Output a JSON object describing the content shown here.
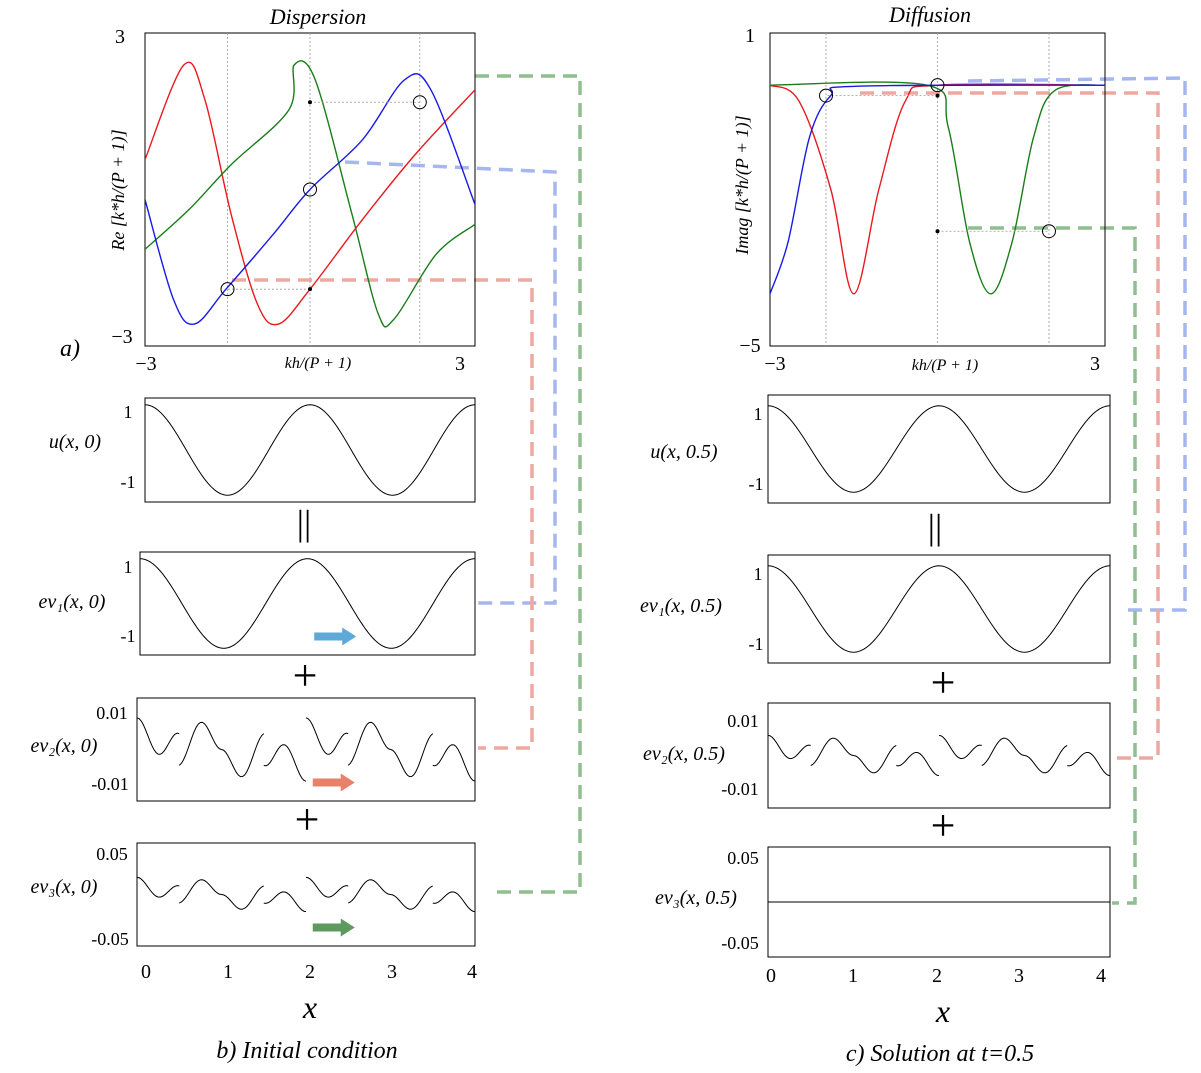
{
  "chart_data": [
    {
      "id": "dispersion",
      "type": "line",
      "panel_label": "a)",
      "title": "Dispersion",
      "xlabel": "kh/(P + 1)",
      "ylabel": "Re [k*h/(P + 1)]",
      "xlim": [
        -3.14,
        3.14
      ],
      "ylim": [
        -3.14,
        3.14
      ],
      "x_ticks": [
        "−3",
        "3"
      ],
      "y_ticks": [
        "3",
        "−3"
      ],
      "grid_x": [
        -1.57,
        0,
        2.09
      ],
      "colors": {
        "red": "#e8191f",
        "green": "#1a7d1a",
        "blue": "#1a1ae6"
      },
      "series": [
        {
          "color": "red",
          "points": [
            [
              -3.14,
              0.6
            ],
            [
              -2.4,
              2.5
            ],
            [
              -2.0,
              1.8
            ],
            [
              -1.5,
              -0.5
            ],
            [
              -1.0,
              -2.3
            ],
            [
              -0.6,
              -2.7
            ],
            [
              0.0,
              -2.0
            ],
            [
              1.0,
              -0.6
            ],
            [
              2.0,
              0.7
            ],
            [
              3.14,
              2.0
            ]
          ]
        },
        {
          "color": "green",
          "points": [
            [
              -3.14,
              -1.2
            ],
            [
              -2.3,
              -0.4
            ],
            [
              -1.5,
              0.5
            ],
            [
              -0.4,
              1.6
            ],
            [
              -0.3,
              2.5
            ],
            [
              0.1,
              2.2
            ],
            [
              0.8,
              -0.5
            ],
            [
              1.3,
              -2.5
            ],
            [
              1.6,
              -2.6
            ],
            [
              2.4,
              -1.3
            ],
            [
              3.14,
              -0.7
            ]
          ]
        },
        {
          "color": "blue",
          "points": [
            [
              -3.14,
              -0.2
            ],
            [
              -2.6,
              -2.2
            ],
            [
              -2.2,
              -2.7
            ],
            [
              -1.6,
              -2.0
            ],
            [
              -0.7,
              -0.9
            ],
            [
              0.0,
              0.0
            ],
            [
              1.0,
              1.0
            ],
            [
              1.8,
              2.2
            ],
            [
              2.3,
              2.0
            ],
            [
              3.14,
              -0.3
            ]
          ]
        }
      ],
      "markers_open": [
        [
          -1.57,
          -2.0
        ],
        [
          0.0,
          0.0
        ],
        [
          2.09,
          1.75
        ]
      ],
      "markers_dot": [
        [
          0.0,
          -2.0
        ],
        [
          0.0,
          1.75
        ]
      ]
    },
    {
      "id": "diffusion",
      "type": "line",
      "title": "Diffusion",
      "xlabel": "kh/(P + 1)",
      "ylabel": "Imag [k*h/(P + 1)]",
      "xlim": [
        -3.14,
        3.14
      ],
      "ylim": [
        -5,
        1
      ],
      "x_ticks": [
        "−3",
        "3"
      ],
      "y_ticks": [
        "1",
        "−5"
      ],
      "grid_x": [
        -2.09,
        0,
        2.09
      ],
      "series": [
        {
          "color": "red",
          "points": [
            [
              -3.14,
              0.0
            ],
            [
              -2.6,
              -0.3
            ],
            [
              -2.0,
              -2.0
            ],
            [
              -1.57,
              -4.0
            ],
            [
              -1.1,
              -2.0
            ],
            [
              -0.6,
              -0.3
            ],
            [
              0.0,
              0.0
            ],
            [
              3.14,
              0.0
            ]
          ]
        },
        {
          "color": "green",
          "points": [
            [
              -3.14,
              0.0
            ],
            [
              -0.2,
              0.0
            ],
            [
              0.2,
              -0.8
            ],
            [
              0.6,
              -3.0
            ],
            [
              1.0,
              -4.0
            ],
            [
              1.4,
              -3.0
            ],
            [
              1.8,
              -1.0
            ],
            [
              2.2,
              -0.1
            ],
            [
              3.14,
              0.0
            ]
          ]
        },
        {
          "color": "blue",
          "points": [
            [
              -3.14,
              -4.0
            ],
            [
              -2.8,
              -3.0
            ],
            [
              -2.4,
              -1.0
            ],
            [
              -2.0,
              -0.2
            ],
            [
              -1.5,
              -0.02
            ],
            [
              3.14,
              0.0
            ]
          ]
        }
      ],
      "markers_open": [
        [
          -2.09,
          -0.2
        ],
        [
          0.0,
          0.0
        ],
        [
          2.09,
          -2.8
        ]
      ],
      "markers_dot": [
        [
          0.0,
          -0.2
        ],
        [
          0.0,
          -2.8
        ]
      ]
    },
    {
      "id": "b-u",
      "type": "line",
      "ylabel": "u(x, 0)",
      "y_ticks": [
        "1",
        "-1"
      ],
      "ylim": [
        -1.15,
        1.15
      ],
      "xlim": [
        0,
        4
      ],
      "wave": "cos",
      "amplitude": 1
    },
    {
      "id": "b-ev1",
      "type": "line",
      "ylabel": "ev₁(x, 0)",
      "y_ticks": [
        "1",
        "-1"
      ],
      "ylim": [
        -1.15,
        1.15
      ],
      "xlim": [
        0,
        4
      ],
      "wave": "cos",
      "amplitude": 1,
      "arrow_color": "#5ea9d8"
    },
    {
      "id": "b-ev2",
      "type": "line",
      "ylabel": "ev₂(x, 0)",
      "y_ticks": [
        "0.01",
        "-0.01"
      ],
      "ylim": [
        -0.013,
        0.013
      ],
      "xlim": [
        0,
        4
      ],
      "wave": "pieces",
      "amplitude": 0.008,
      "arrow_color": "#e8806a"
    },
    {
      "id": "b-ev3",
      "type": "line",
      "ylabel": "ev₃(x, 0)",
      "y_ticks": [
        "0.05",
        "-0.05"
      ],
      "ylim": [
        -0.06,
        0.06
      ],
      "xlim": [
        0,
        4
      ],
      "wave": "pieces",
      "amplitude": 0.02,
      "arrow_color": "#5e9a5e",
      "x_ticks": [
        "0",
        "1",
        "2",
        "3",
        "4"
      ],
      "xlabel": "x"
    },
    {
      "id": "c-u",
      "type": "line",
      "ylabel": "u(x, 0.5)",
      "y_ticks": [
        "1",
        "-1"
      ],
      "ylim": [
        -1.25,
        1.25
      ],
      "xlim": [
        0,
        4
      ],
      "wave": "cos",
      "amplitude": 1
    },
    {
      "id": "c-ev1",
      "type": "line",
      "ylabel": "ev₁(x, 0.5)",
      "y_ticks": [
        "1",
        "-1"
      ],
      "ylim": [
        -1.25,
        1.25
      ],
      "xlim": [
        0,
        4
      ],
      "wave": "cos",
      "amplitude": 1
    },
    {
      "id": "c-ev2",
      "type": "line",
      "ylabel": "ev₂(x, 0.5)",
      "y_ticks": [
        "0.01",
        "-0.01"
      ],
      "ylim": [
        -0.013,
        0.013
      ],
      "xlim": [
        0,
        4
      ],
      "wave": "pieces",
      "amplitude": 0.005
    },
    {
      "id": "c-ev3",
      "type": "line",
      "ylabel": "ev₃(x, 0.5)",
      "y_ticks": [
        "0.05",
        "-0.05"
      ],
      "ylim": [
        -0.06,
        0.06
      ],
      "xlim": [
        0,
        4
      ],
      "wave": "flat",
      "amplitude": 0,
      "x_ticks": [
        "0",
        "1",
        "2",
        "3",
        "4"
      ],
      "xlabel": "x"
    }
  ],
  "operators": {
    "equals": "||",
    "plus": "+"
  },
  "captions": {
    "b": "b) Initial condition",
    "c": "c) Solution at t=0.5"
  },
  "connector_colors": {
    "green": "#8fbf8f",
    "blue": "#a6b6f0",
    "red": "#eea8a0"
  }
}
